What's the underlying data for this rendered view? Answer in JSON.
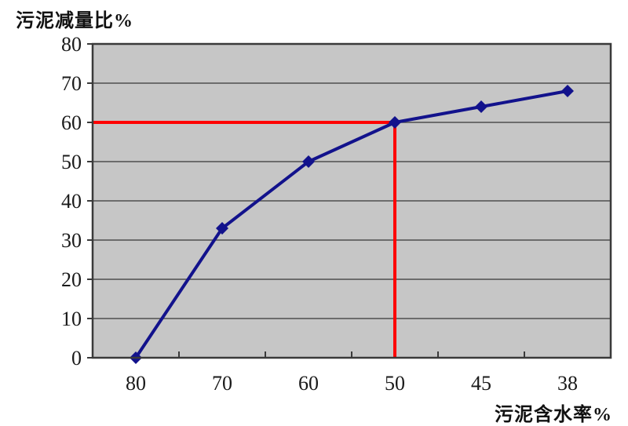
{
  "page": {
    "background": "#ffffff"
  },
  "chart_data": {
    "type": "line",
    "title": "",
    "ylabel": "污泥减量比%",
    "xlabel": "污泥含水率%",
    "categories": [
      "80",
      "70",
      "60",
      "50",
      "45",
      "38"
    ],
    "series": [
      {
        "values": [
          0,
          33,
          50,
          60,
          64,
          68
        ],
        "color": "#12128c",
        "marker": "diamond"
      }
    ],
    "ylim": [
      0,
      80
    ],
    "yticks": [
      0,
      10,
      20,
      30,
      40,
      50,
      60,
      70,
      80
    ],
    "grid": true,
    "legend": "none",
    "plot_bg": "#c6c6c6",
    "grid_color": "#4f4f4f",
    "axis_color": "#3a3a3a",
    "text_color": "#1a1a1a",
    "annotation": {
      "type": "crosshair",
      "color": "#ff0000",
      "category": "50",
      "category_index": 3,
      "value": 60
    }
  }
}
